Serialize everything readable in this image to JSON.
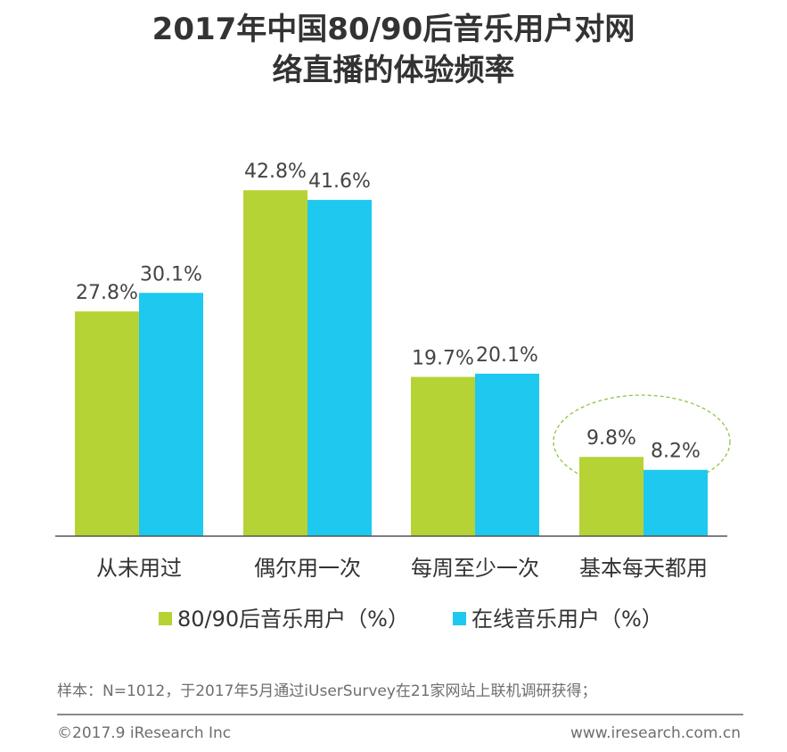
{
  "title_line1": "2017年中国80/90后音乐用户对网",
  "title_line2": "络直播的体验频率",
  "chart_data": {
    "type": "bar",
    "categories": [
      "从未用过",
      "偶尔用一次",
      "每周至少一次",
      "基本每天都用"
    ],
    "series": [
      {
        "name": "80/90后音乐用户（%）",
        "values": [
          27.8,
          42.8,
          19.7,
          9.8
        ],
        "labels": [
          "27.8%",
          "42.8%",
          "19.7%",
          "9.8%"
        ],
        "color": "#b5d334"
      },
      {
        "name": "在线音乐用户（%）",
        "values": [
          30.1,
          41.6,
          20.1,
          8.2
        ],
        "labels": [
          "30.1%",
          "41.6%",
          "20.1%",
          "8.2%"
        ],
        "color": "#1ec8ef"
      }
    ],
    "ylim": [
      0,
      44
    ],
    "grid": false,
    "legend_position": "bottom",
    "highlighted_category": "基本每天都用",
    "highlight_color": "#8cc63f"
  },
  "note": "样本：N=1012，于2017年5月通过iUserSurvey在21家网站上联机调研获得；",
  "copyright": "©2017.9 iResearch Inc",
  "website": "www.iresearch.com.cn"
}
